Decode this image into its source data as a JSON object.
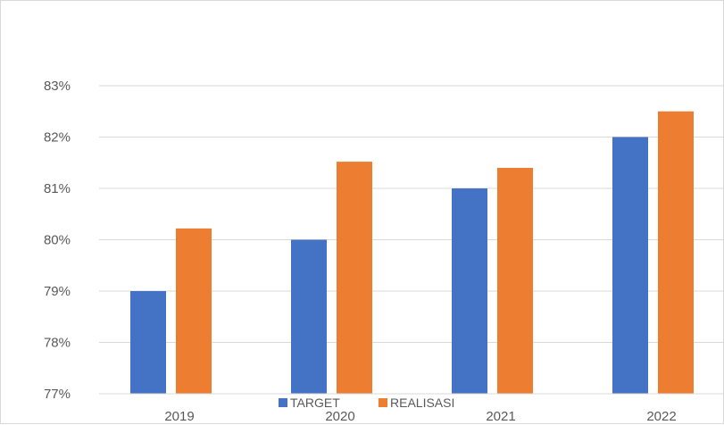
{
  "chart_data": {
    "type": "bar",
    "categories": [
      "2019",
      "2020",
      "2021",
      "2022"
    ],
    "series": [
      {
        "name": "TARGET",
        "color": "#4472c4",
        "values": [
          79.0,
          80.0,
          81.0,
          82.0
        ]
      },
      {
        "name": "REALISASI",
        "color": "#ed7d31",
        "values": [
          80.22,
          81.52,
          81.4,
          82.5
        ]
      }
    ],
    "y_unit": "%",
    "ylim": [
      77,
      83
    ],
    "yticks": [
      "77%",
      "78%",
      "79%",
      "80%",
      "81%",
      "82%",
      "83%"
    ],
    "grid": true,
    "legend_position": "bottom",
    "title": "",
    "xlabel": "",
    "ylabel": ""
  }
}
